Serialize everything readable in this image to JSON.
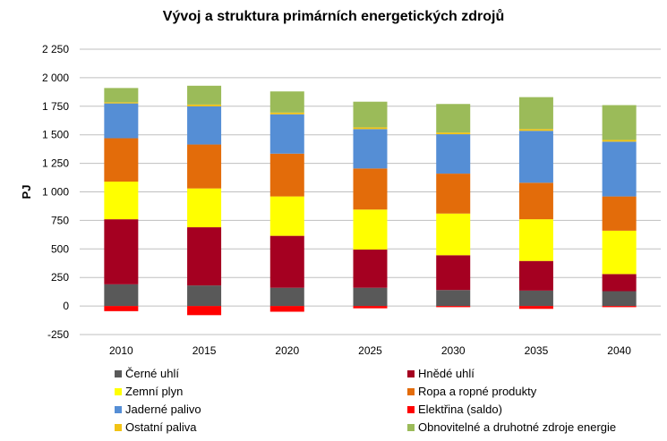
{
  "chart_data": {
    "type": "bar",
    "stacked": true,
    "title": "Vývoj a struktura primárních energetických zdrojů",
    "ylabel": "PJ",
    "xlabel": "",
    "ylim": [
      -250,
      2250
    ],
    "yticks": [
      -250,
      0,
      250,
      500,
      750,
      1000,
      1250,
      1500,
      1750,
      2000,
      2250
    ],
    "ytick_labels": [
      "-250",
      "0",
      "250",
      "500",
      "750",
      "1 000",
      "1 250",
      "1 500",
      "1 750",
      "2 000",
      "2 250"
    ],
    "grid": true,
    "legend_position": "bottom",
    "categories": [
      "2010",
      "2015",
      "2020",
      "2025",
      "2030",
      "2035",
      "2040"
    ],
    "series": [
      {
        "name": "Černé uhlí",
        "color": "#595959",
        "values": [
          190,
          180,
          160,
          160,
          140,
          135,
          130
        ]
      },
      {
        "name": "Hnědé uhlí",
        "color": "#a50021",
        "values": [
          570,
          510,
          455,
          335,
          305,
          260,
          150
        ]
      },
      {
        "name": "Zemní plyn",
        "color": "#ffff00",
        "values": [
          330,
          340,
          345,
          350,
          365,
          365,
          380
        ]
      },
      {
        "name": "Ropa a ropné produkty",
        "color": "#e36c0a",
        "values": [
          380,
          385,
          375,
          360,
          350,
          320,
          300
        ]
      },
      {
        "name": "Jaderné palivo",
        "color": "#558ed5",
        "values": [
          305,
          335,
          345,
          345,
          345,
          455,
          480
        ]
      },
      {
        "name": "Elektřina (saldo)",
        "color": "#ff0000",
        "values": [
          -45,
          -80,
          -50,
          -20,
          -10,
          -25,
          -10
        ]
      },
      {
        "name": "Ostatní paliva",
        "color": "#f2c314",
        "values": [
          10,
          15,
          15,
          15,
          15,
          15,
          15
        ]
      },
      {
        "name": "Obnovitelné a druhotné zdroje energie",
        "color": "#9bbb59",
        "values": [
          125,
          165,
          185,
          225,
          250,
          280,
          305
        ]
      }
    ]
  }
}
